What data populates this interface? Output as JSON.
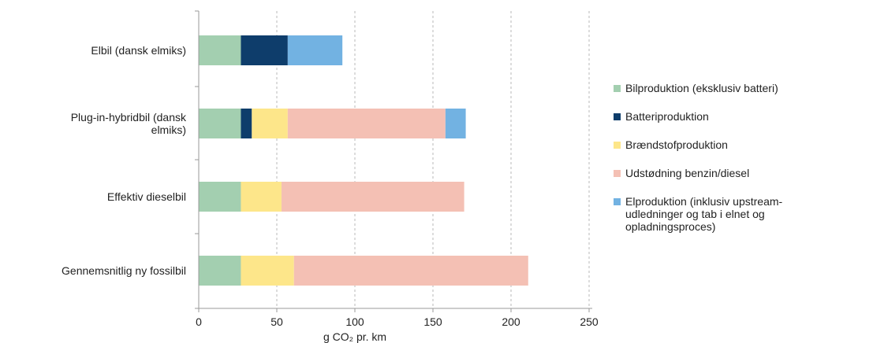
{
  "chart_data": {
    "type": "bar",
    "orientation": "horizontal",
    "stacked": true,
    "categories": [
      "Elbil (dansk elmiks)",
      "Plug-in-hybridbil (dansk\nelmiks)",
      "Effektiv dieselbil",
      "Gennemsnitlig ny fossilbil"
    ],
    "series": [
      {
        "name": "Bilproduktion (eksklusiv batteri)",
        "color": "#a3cfb0",
        "values": [
          27,
          27,
          27,
          27
        ]
      },
      {
        "name": "Batteriproduktion",
        "color": "#0e3d6b",
        "values": [
          30,
          7,
          0,
          0
        ]
      },
      {
        "name": "Brændstofproduktion",
        "color": "#fde68a",
        "values": [
          0,
          23,
          26,
          34
        ]
      },
      {
        "name": "Udstødning benzin/diesel",
        "color": "#f4c0b4",
        "values": [
          0,
          101,
          117,
          150
        ]
      },
      {
        "name": "Elproduktion (inklusiv upstream-\nudledninger og tab i elnet og\nopladningsproces)",
        "color": "#72b2e2",
        "values": [
          35,
          13,
          0,
          0
        ]
      }
    ],
    "xlabel": "g CO₂ pr. km",
    "xlim": [
      0,
      250
    ],
    "xticks": [
      "0",
      "50",
      "100",
      "150",
      "200",
      "250"
    ],
    "grid": "vertical dashed",
    "legend_position": "right"
  }
}
